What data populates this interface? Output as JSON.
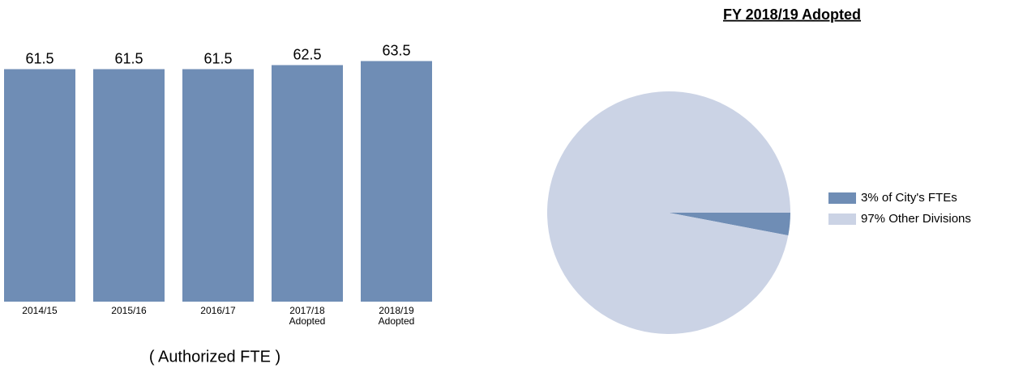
{
  "chart_data": [
    {
      "type": "bar",
      "categories": [
        "2014/15",
        "2015/16",
        "2016/17",
        "2017/18 Adopted",
        "2018/19 Adopted"
      ],
      "values": [
        61.5,
        61.5,
        61.5,
        62.5,
        63.5
      ],
      "color": "#6f8db5",
      "ylim": [
        4,
        64
      ],
      "x_label": "( Authorized FTE )"
    },
    {
      "type": "pie",
      "title": "FY 2018/19 Adopted",
      "legend": "right",
      "series": [
        {
          "name": "3% of City's FTEs",
          "color": "#6f8db5",
          "values": [
            3
          ]
        },
        {
          "name": "97% Other Divisions",
          "color": "#cbd3e5",
          "values": [
            97
          ]
        }
      ]
    }
  ]
}
